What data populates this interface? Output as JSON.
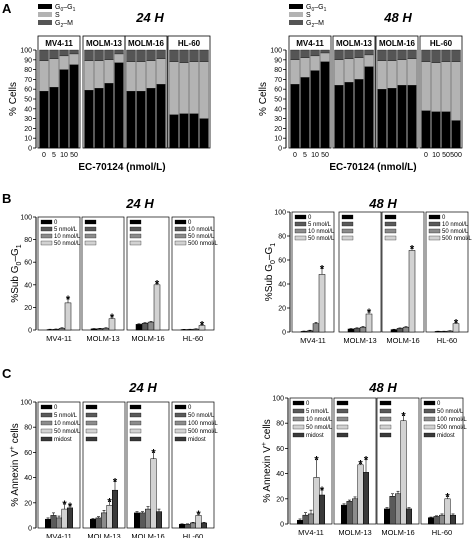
{
  "figure": {
    "panel_labels": [
      "A",
      "B",
      "C"
    ]
  },
  "chart_data": [
    {
      "id": "A24",
      "type": "bar",
      "subtype": "stacked-percent",
      "panel_label": "A",
      "title": "24 H",
      "xlabel": "EC-70124 (nmol/L)",
      "ylabel": "% Cells",
      "ylim": [
        0,
        100
      ],
      "yticks": [
        0,
        10,
        20,
        30,
        40,
        50,
        60,
        70,
        80,
        90,
        100
      ],
      "legend_position": "top-left",
      "series": [
        {
          "name": "G0–G1",
          "color": "#000000",
          "label_base": "G",
          "label_sub": "0",
          "label_mid": "–G",
          "label_sub2": "1"
        },
        {
          "name": "S",
          "color": "#b3b3b3",
          "label_base": "S",
          "label_sub": "",
          "label_mid": "",
          "label_sub2": ""
        },
        {
          "name": "G2–M",
          "color": "#555555",
          "label_base": "G",
          "label_sub": "2",
          "label_mid": "–M",
          "label_sub2": ""
        }
      ],
      "groups": [
        {
          "name": "MV4-11",
          "x_ticks": [
            "0",
            "5",
            "10",
            "50"
          ],
          "values": [
            [
              58,
              31,
              11
            ],
            [
              62,
              29,
              9
            ],
            [
              80,
              14,
              6
            ],
            [
              85,
              11,
              4
            ]
          ]
        },
        {
          "name": "MOLM-13",
          "x_ticks": [
            "",
            "",
            "",
            ""
          ],
          "values": [
            [
              59,
              30,
              11
            ],
            [
              61,
              28,
              11
            ],
            [
              66,
              24,
              10
            ],
            [
              87,
              9,
              4
            ]
          ]
        },
        {
          "name": "MOLM-16",
          "x_ticks": [
            "",
            "",
            "",
            ""
          ],
          "values": [
            [
              58,
              30,
              12
            ],
            [
              58,
              30,
              12
            ],
            [
              61,
              28,
              11
            ],
            [
              65,
              26,
              9
            ]
          ]
        },
        {
          "name": "HL-60",
          "x_ticks": [
            "",
            "",
            "",
            ""
          ],
          "values": [
            [
              34,
              54,
              12
            ],
            [
              35,
              52,
              13
            ],
            [
              35,
              53,
              12
            ],
            [
              30,
              58,
              12
            ]
          ]
        }
      ]
    },
    {
      "id": "A48",
      "type": "bar",
      "subtype": "stacked-percent",
      "panel_label": "",
      "title": "48 H",
      "xlabel": "EC-70124 (nmol/L)",
      "ylabel": "% Cells",
      "ylim": [
        0,
        100
      ],
      "yticks": [
        0,
        10,
        20,
        30,
        40,
        50,
        60,
        70,
        80,
        90,
        100
      ],
      "legend_position": "top-left",
      "series": [
        {
          "name": "G0–G1",
          "color": "#000000",
          "label_base": "G",
          "label_sub": "0",
          "label_mid": "–G",
          "label_sub2": "1"
        },
        {
          "name": "S",
          "color": "#b3b3b3",
          "label_base": "S",
          "label_sub": "",
          "label_mid": "",
          "label_sub2": ""
        },
        {
          "name": "G2–M",
          "color": "#555555",
          "label_base": "G",
          "label_sub": "2",
          "label_mid": "–M",
          "label_sub2": ""
        }
      ],
      "groups": [
        {
          "name": "MV4-11",
          "x_ticks": [
            "0",
            "5",
            "10",
            "50"
          ],
          "values": [
            [
              65,
              25,
              10
            ],
            [
              72,
              20,
              8
            ],
            [
              79,
              15,
              6
            ],
            [
              88,
              9,
              3
            ]
          ]
        },
        {
          "name": "MOLM-13",
          "x_ticks": [
            "",
            "",
            "",
            ""
          ],
          "values": [
            [
              64,
              26,
              10
            ],
            [
              67,
              24,
              9
            ],
            [
              70,
              22,
              8
            ],
            [
              83,
              12,
              5
            ]
          ]
        },
        {
          "name": "MOLM-16",
          "x_ticks": [
            "",
            "",
            "",
            ""
          ],
          "values": [
            [
              60,
              29,
              11
            ],
            [
              61,
              28,
              11
            ],
            [
              64,
              26,
              10
            ],
            [
              64,
              27,
              9
            ]
          ]
        },
        {
          "name": "HL-60",
          "x_ticks": [
            "0",
            "10",
            "50",
            "500"
          ],
          "values": [
            [
              38,
              50,
              12
            ],
            [
              37,
              50,
              13
            ],
            [
              37,
              51,
              12
            ],
            [
              28,
              60,
              12
            ]
          ]
        }
      ]
    },
    {
      "id": "B24",
      "type": "bar",
      "subtype": "grouped-errorbars",
      "panel_label": "B",
      "title": "24 H",
      "ylabel_base": "%Sub G",
      "ylabel_sub": "0",
      "ylabel_mid": "–G",
      "ylabel_sub2": "1",
      "ylim": [
        0,
        100
      ],
      "yticks": [
        0,
        20,
        40,
        60,
        80,
        100
      ],
      "colors": [
        "#000000",
        "#5a5a5a",
        "#8c8c8c",
        "#d2d2d2",
        "#f5f5f5"
      ],
      "groups": [
        {
          "name": "MV4-11",
          "legend": [
            "0",
            "5 nmol/L",
            "10 nmol/L",
            "50 nmol/L"
          ],
          "values": [
            0.4,
            0.6,
            1.5,
            24
          ],
          "errors": [
            0.3,
            0.3,
            0.5,
            3.5
          ],
          "star": [
            false,
            false,
            false,
            true
          ]
        },
        {
          "name": "MOLM-13",
          "legend": [
            "",
            "",
            "",
            ""
          ],
          "values": [
            1,
            1.2,
            1.6,
            10
          ],
          "errors": [
            0.3,
            0.3,
            0.4,
            1.5
          ],
          "star": [
            false,
            false,
            false,
            true
          ]
        },
        {
          "name": "MOLM-16",
          "legend": [
            "",
            "",
            "",
            ""
          ],
          "values": [
            5,
            6,
            7,
            40
          ],
          "errors": [
            0.5,
            0.5,
            0.6,
            1
          ],
          "star": [
            false,
            false,
            false,
            true
          ]
        },
        {
          "name": "HL-60",
          "legend": [
            "0",
            "10 nmol/L",
            "50 nmol/L",
            "500 nmol/L"
          ],
          "values": [
            0.4,
            0.5,
            0.8,
            4
          ],
          "errors": [
            0.2,
            0.2,
            0.3,
            0.8
          ],
          "star": [
            false,
            false,
            false,
            true
          ]
        }
      ]
    },
    {
      "id": "B48",
      "type": "bar",
      "subtype": "grouped-errorbars",
      "panel_label": "",
      "title": "48 H",
      "ylabel_base": "%Sub G",
      "ylabel_sub": "0",
      "ylabel_mid": "–G",
      "ylabel_sub2": "1",
      "ylim": [
        0,
        100
      ],
      "yticks": [
        0,
        20,
        40,
        60,
        80,
        100
      ],
      "colors": [
        "#000000",
        "#5a5a5a",
        "#8c8c8c",
        "#d2d2d2",
        "#f5f5f5"
      ],
      "groups": [
        {
          "name": "MV4-11",
          "legend": [
            "0",
            "5 nmol/L",
            "10 nmol/L",
            "50 nmol/L"
          ],
          "values": [
            0.5,
            1,
            7,
            48
          ],
          "errors": [
            0.3,
            0.5,
            1,
            5
          ],
          "star": [
            false,
            false,
            false,
            true
          ]
        },
        {
          "name": "MOLM-13",
          "legend": [
            "",
            "",
            "",
            ""
          ],
          "values": [
            2.5,
            3,
            4,
            15
          ],
          "errors": [
            0.4,
            0.5,
            0.6,
            1.5
          ],
          "star": [
            false,
            false,
            false,
            true
          ]
        },
        {
          "name": "MOLM-16",
          "legend": [
            "",
            "",
            "",
            ""
          ],
          "values": [
            2,
            3,
            4,
            68
          ],
          "errors": [
            0.3,
            0.4,
            0.5,
            1.5
          ],
          "star": [
            false,
            false,
            false,
            true
          ]
        },
        {
          "name": "HL-60",
          "legend": [
            "0",
            "10 nmol/L",
            "50 nmol/L",
            "500 nmol/L"
          ],
          "values": [
            0.5,
            0.5,
            0.8,
            7
          ],
          "errors": [
            0.2,
            0.2,
            0.3,
            1
          ],
          "star": [
            false,
            false,
            false,
            true
          ]
        }
      ]
    },
    {
      "id": "C24",
      "type": "bar",
      "subtype": "grouped-errorbars",
      "panel_label": "C",
      "title": "24 H",
      "ylabel_base": "% Annexin V",
      "ylabel_sup": "+",
      "ylabel_end": " cells",
      "ylim": [
        0,
        100
      ],
      "yticks": [
        0,
        20,
        40,
        60,
        80,
        100
      ],
      "colors": [
        "#000000",
        "#5a5a5a",
        "#8c8c8c",
        "#d2d2d2",
        "#3a3a3a"
      ],
      "groups": [
        {
          "name": "MV4-11",
          "legend": [
            "0",
            "5 nmol/L",
            "10 nmol/L",
            "50 nmol/L",
            "midost"
          ],
          "values": [
            7,
            10,
            8,
            15,
            16
          ],
          "errors": [
            1,
            2,
            1.5,
            4,
            1.5
          ],
          "star": [
            false,
            false,
            false,
            true,
            true
          ]
        },
        {
          "name": "MOLM-13",
          "legend": [
            "",
            "",
            "",
            "",
            ""
          ],
          "values": [
            7,
            8,
            12,
            18,
            30
          ],
          "errors": [
            0.5,
            1,
            2,
            3,
            7
          ],
          "star": [
            false,
            false,
            false,
            true,
            true
          ]
        },
        {
          "name": "MOLM-16",
          "legend": [
            "",
            "",
            "",
            "",
            ""
          ],
          "values": [
            12,
            12,
            15,
            55,
            13
          ],
          "errors": [
            1,
            1,
            2,
            5,
            2
          ],
          "star": [
            false,
            false,
            false,
            true,
            false
          ]
        },
        {
          "name": "HL-60",
          "legend": [
            "0",
            "50 nmol/L",
            "100 nmol/L",
            "500 nmol/L",
            "midost"
          ],
          "values": [
            3,
            3,
            4,
            10,
            4
          ],
          "errors": [
            0.3,
            0.3,
            0.5,
            1,
            0.5
          ],
          "star": [
            false,
            false,
            false,
            true,
            false
          ]
        }
      ]
    },
    {
      "id": "C48",
      "type": "bar",
      "subtype": "grouped-errorbars",
      "panel_label": "",
      "title": "48 H",
      "ylabel_base": "% Annexin V",
      "ylabel_sup": "+",
      "ylabel_end": " cells",
      "ylim": [
        0,
        100
      ],
      "yticks": [
        0,
        20,
        40,
        60,
        80,
        100
      ],
      "colors": [
        "#000000",
        "#5a5a5a",
        "#8c8c8c",
        "#d2d2d2",
        "#3a3a3a"
      ],
      "groups": [
        {
          "name": "MV4-11",
          "legend": [
            "0",
            "5 nmol/L",
            "10 nmol/L",
            "50 nmol/L",
            "midost"
          ],
          "values": [
            3,
            7,
            8,
            37,
            23
          ],
          "errors": [
            1,
            2,
            3,
            14,
            4
          ],
          "star": [
            false,
            false,
            false,
            true,
            true
          ]
        },
        {
          "name": "MOLM-13",
          "legend": [
            "",
            "",
            "",
            "",
            ""
          ],
          "values": [
            15,
            18,
            20,
            47,
            41
          ],
          "errors": [
            1,
            1,
            1.5,
            1,
            10
          ],
          "star": [
            false,
            false,
            false,
            true,
            true
          ]
        },
        {
          "name": "MOLM-16",
          "legend": [
            "",
            "",
            "",
            "",
            ""
          ],
          "values": [
            12,
            22,
            24,
            82,
            12
          ],
          "errors": [
            1,
            2,
            2,
            4,
            1
          ],
          "star": [
            false,
            false,
            false,
            true,
            false
          ]
        },
        {
          "name": "HL-60",
          "legend": [
            "0",
            "50 nmol/L",
            "100 nmol/L",
            "500 nmol/L",
            "midost"
          ],
          "values": [
            5,
            6,
            7,
            20,
            7
          ],
          "errors": [
            0.5,
            0.5,
            1,
            2,
            1
          ],
          "star": [
            false,
            false,
            false,
            true,
            false
          ]
        }
      ]
    }
  ]
}
